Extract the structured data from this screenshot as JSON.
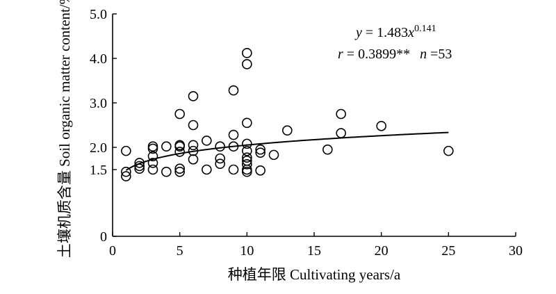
{
  "chart_data": {
    "type": "scatter",
    "xlabel": "种植年限 Cultivating years/a",
    "ylabel": "土壤机质含量 Soil organic matter content/%",
    "xlim": [
      0,
      30
    ],
    "ylim": [
      0,
      5
    ],
    "xticks": [
      0,
      5,
      10,
      15,
      20,
      25,
      30
    ],
    "yticks": [
      0,
      1.5,
      2.0,
      3.0,
      4.0,
      5.0
    ],
    "ytick_labels": [
      "0",
      "1.5",
      "2.0",
      "3.0",
      "4.0",
      "5.0"
    ],
    "grid": false,
    "legend": "none",
    "annotation": {
      "line1": {
        "lhs": "y",
        "eq": " = 1.483",
        "var": "x",
        "exp": "0.141"
      },
      "line2": {
        "r_var": "r",
        "r_val": " = 0.3899**",
        "n_var": "n",
        "n_val": " =53"
      }
    },
    "fit": {
      "a": 1.483,
      "b": 0.141,
      "x_range": [
        1,
        25
      ]
    },
    "points": [
      [
        1,
        1.92
      ],
      [
        1,
        1.45
      ],
      [
        1,
        1.35
      ],
      [
        2,
        1.65
      ],
      [
        2,
        1.58
      ],
      [
        2,
        1.52
      ],
      [
        3,
        2.02
      ],
      [
        3,
        1.97
      ],
      [
        3,
        1.8
      ],
      [
        3,
        1.65
      ],
      [
        3,
        1.5
      ],
      [
        4,
        2.02
      ],
      [
        4,
        1.45
      ],
      [
        5,
        2.75
      ],
      [
        5,
        2.05
      ],
      [
        5,
        2.02
      ],
      [
        5,
        1.9
      ],
      [
        5,
        1.52
      ],
      [
        5,
        1.45
      ],
      [
        6,
        3.15
      ],
      [
        6,
        2.5
      ],
      [
        6,
        2.05
      ],
      [
        6,
        1.92
      ],
      [
        6,
        1.73
      ],
      [
        7,
        2.15
      ],
      [
        7,
        1.5
      ],
      [
        8,
        2.02
      ],
      [
        8,
        1.75
      ],
      [
        8,
        1.63
      ],
      [
        9,
        3.28
      ],
      [
        9,
        2.28
      ],
      [
        9,
        2.02
      ],
      [
        9,
        1.5
      ],
      [
        10,
        4.12
      ],
      [
        10,
        3.87
      ],
      [
        10,
        2.55
      ],
      [
        10,
        2.08
      ],
      [
        10,
        1.92
      ],
      [
        10,
        1.77
      ],
      [
        10,
        1.7
      ],
      [
        10,
        1.62
      ],
      [
        10,
        1.5
      ],
      [
        10,
        1.45
      ],
      [
        11,
        1.95
      ],
      [
        11,
        1.88
      ],
      [
        11,
        1.48
      ],
      [
        12,
        1.83
      ],
      [
        13,
        2.38
      ],
      [
        16,
        1.95
      ],
      [
        17,
        2.75
      ],
      [
        17,
        2.32
      ],
      [
        20,
        2.48
      ],
      [
        25,
        1.92
      ]
    ]
  }
}
